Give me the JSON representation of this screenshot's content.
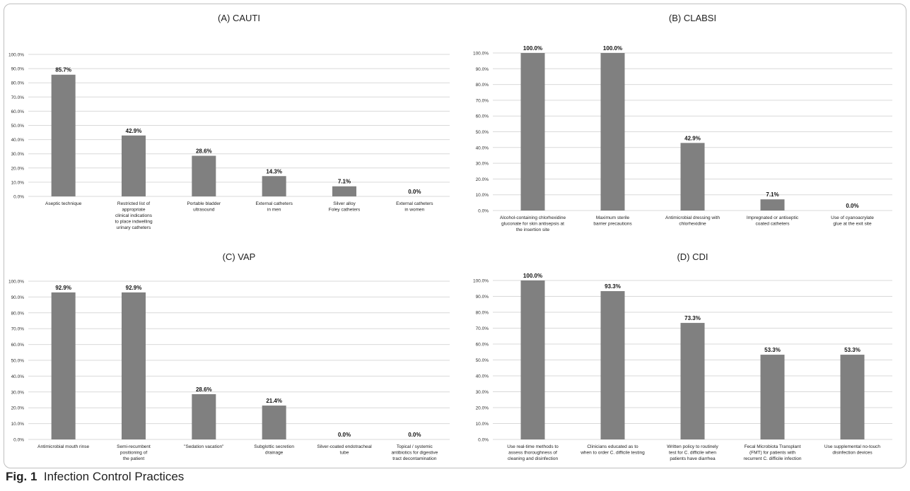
{
  "figure": {
    "caption_label": "Fig. 1",
    "caption_text": "Infection Control Practices",
    "bar_color": "#808080",
    "grid_color": "#d9d9d9"
  },
  "chart_data": [
    {
      "type": "bar",
      "title": "(A) CAUTI",
      "ylim": [
        0,
        100
      ],
      "ytick_step": 10,
      "ytick_format": "percent-1dp",
      "grid": true,
      "categories": [
        [
          "Aseptic technique"
        ],
        [
          "Restricted list of",
          "appropriate",
          "clinical indications",
          "to place indwelling",
          "urinary catheters"
        ],
        [
          "Portable bladder",
          "ultrasound"
        ],
        [
          "External catheters",
          "in men"
        ],
        [
          "Silver alloy",
          "Foley catheters"
        ],
        [
          "External catheters",
          "in women"
        ]
      ],
      "values": [
        85.7,
        42.9,
        28.6,
        14.3,
        7.1,
        0.0
      ],
      "data_labels": [
        "85.7%",
        "42.9%",
        "28.6%",
        "14.3%",
        "7.1%",
        "0.0%"
      ]
    },
    {
      "type": "bar",
      "title": "(B) CLABSI",
      "ylim": [
        0,
        100
      ],
      "ytick_step": 10,
      "ytick_format": "percent-1dp",
      "grid": true,
      "categories": [
        [
          "Alcohol-containing chlorhexidine",
          "gluconate for skin antisepsis at",
          "the insertion site"
        ],
        [
          "Maximum sterile",
          "barrier precautions"
        ],
        [
          "Antimicrobial dressing with",
          "chlorhexidine"
        ],
        [
          "Impregnated or antiseptic",
          "coated catheters"
        ],
        [
          "Use of cyanoacrylate",
          "glue at the exit site"
        ]
      ],
      "values": [
        100.0,
        100.0,
        42.9,
        7.1,
        0.0
      ],
      "data_labels": [
        "100.0%",
        "100.0%",
        "42.9%",
        "7.1%",
        "0.0%"
      ]
    },
    {
      "type": "bar",
      "title": "(C) VAP",
      "ylim": [
        0,
        100
      ],
      "ytick_step": 10,
      "ytick_format": "percent-1dp",
      "grid": true,
      "categories": [
        [
          "Antimicrobial mouth rinse"
        ],
        [
          "Semi-recumbent",
          "positioning of",
          "the patient"
        ],
        [
          "\"Sedation vacation\""
        ],
        [
          "Subglottic secretion",
          "drainage"
        ],
        [
          "Silver-coated endotracheal",
          "tube"
        ],
        [
          "Topical / systemic",
          "antibiotics for digestive",
          "tract decontamination"
        ]
      ],
      "values": [
        92.9,
        92.9,
        28.6,
        21.4,
        0.0,
        0.0
      ],
      "data_labels": [
        "92.9%",
        "92.9%",
        "28.6%",
        "21.4%",
        "0.0%",
        "0.0%"
      ]
    },
    {
      "type": "bar",
      "title": "(D) CDI",
      "ylim": [
        0,
        100
      ],
      "ytick_step": 10,
      "ytick_format": "percent-1dp",
      "grid": true,
      "categories": [
        [
          "Use real-time methods to",
          "assess thoroughness of",
          "cleaning and disinfection"
        ],
        [
          "Clinicians educated as to",
          "when to order C. difficile testing"
        ],
        [
          "Written policy to routinely",
          "test for C. difficile when",
          "patients have diarrhea"
        ],
        [
          "Fecal Microbiota Transplant",
          "(FMT) for patients with",
          "recurrent C. difficile infection"
        ],
        [
          "Use supplemental no-touch",
          "disinfection devices"
        ]
      ],
      "values": [
        100.0,
        93.3,
        73.3,
        53.3,
        53.3
      ],
      "data_labels": [
        "100.0%",
        "93.3%",
        "73.3%",
        "53.3%",
        "53.3%"
      ]
    }
  ]
}
